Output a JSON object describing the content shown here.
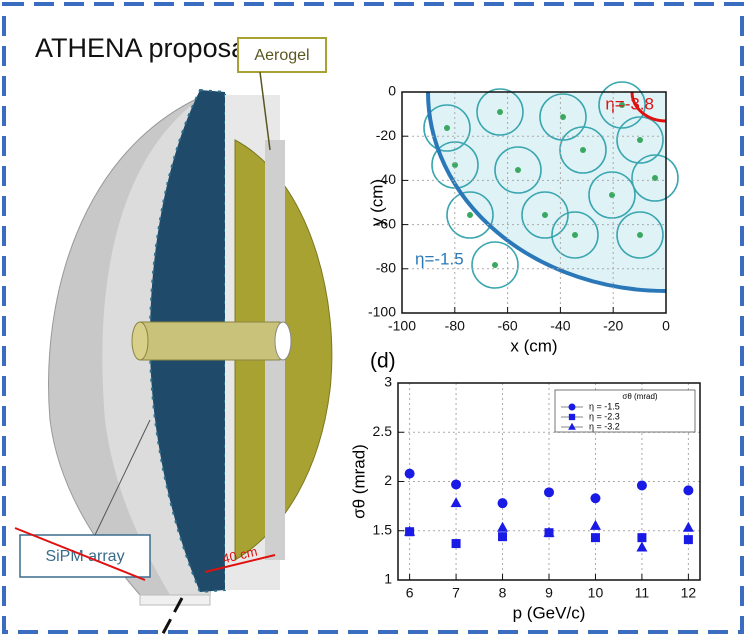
{
  "title": "ATHENA proposal",
  "labels": {
    "aerogel": "Aerogel",
    "sipm": "SiPM array",
    "length": "40 cm"
  },
  "chart_data": [
    {
      "type": "hitmap",
      "xlabel": "x (cm)",
      "ylabel": "y (cm)",
      "xlim": [
        -100,
        0
      ],
      "ylim": [
        -100,
        0
      ],
      "xticks": [
        -100,
        -80,
        -60,
        -40,
        -20,
        0
      ],
      "yticks": [
        -100,
        -80,
        -60,
        -40,
        -20,
        0
      ],
      "grid": true,
      "annotations": [
        "η=-3.8",
        "η=-1.5"
      ]
    },
    {
      "type": "scatter",
      "panel": "(d)",
      "xlabel": "p (GeV/c)",
      "ylabel": "σθ (mrad)",
      "legend_title": "σθ (mrad)",
      "legend": "upper right",
      "grid": true,
      "x": [
        6,
        7,
        8,
        9,
        10,
        11,
        12
      ],
      "xlim": [
        5.75,
        12.25
      ],
      "ylim": [
        1,
        3
      ],
      "xticks": [
        6,
        7,
        8,
        9,
        10,
        11,
        12
      ],
      "yticks": [
        1,
        1.5,
        2,
        2.5,
        3
      ],
      "series": [
        {
          "name": "η = -1.5",
          "color": "#1a1ae6",
          "marker": "circle",
          "values": [
            2.08,
            1.97,
            1.78,
            1.89,
            1.83,
            1.96,
            1.91
          ]
        },
        {
          "name": "η = -2.3",
          "color": "#1a1ae6",
          "marker": "square",
          "values": [
            1.49,
            1.37,
            1.44,
            1.48,
            1.43,
            1.43,
            1.41
          ]
        },
        {
          "name": "η = -3.2",
          "color": "#1a1ae6",
          "marker": "triangle",
          "values": [
            1.49,
            1.78,
            1.53,
            1.48,
            1.55,
            1.33,
            1.53
          ]
        }
      ]
    }
  ]
}
